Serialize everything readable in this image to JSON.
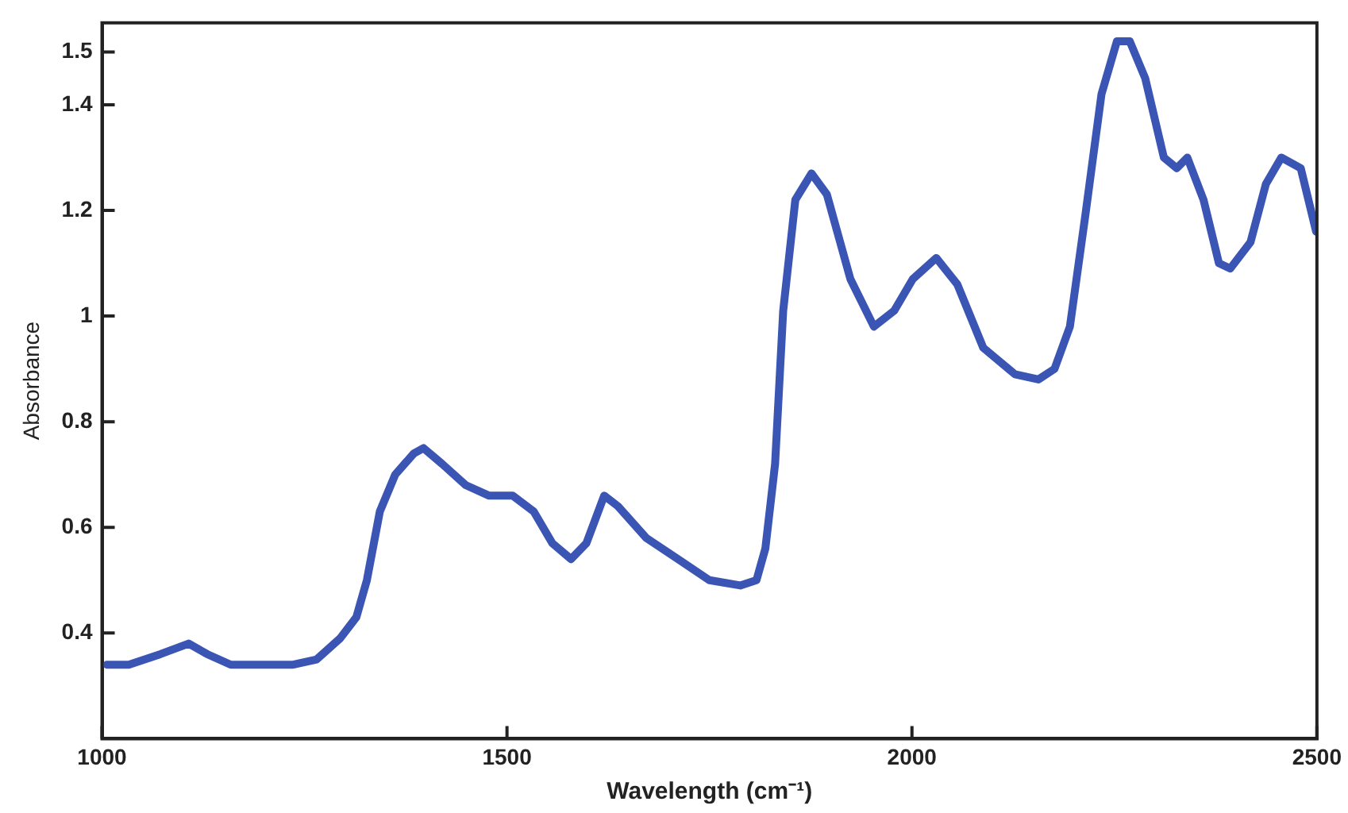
{
  "chart_data": {
    "type": "line",
    "xlabel": "Wavelength (cm⁻¹)",
    "ylabel": "Absorbance",
    "x": [
      1006,
      1033,
      1072,
      1107,
      1130,
      1159,
      1207,
      1236,
      1265,
      1294,
      1314,
      1327,
      1343,
      1362,
      1385,
      1397,
      1420,
      1449,
      1478,
      1507,
      1533,
      1556,
      1579,
      1598,
      1620,
      1637,
      1672,
      1711,
      1750,
      1788,
      1808,
      1819,
      1831,
      1841,
      1856,
      1876,
      1895,
      1924,
      1953,
      1978,
      2001,
      2030,
      2056,
      2088,
      2127,
      2156,
      2176,
      2195,
      2214,
      2234,
      2253,
      2269,
      2288,
      2311,
      2327,
      2340,
      2360,
      2379,
      2393,
      2418,
      2437,
      2456,
      2480,
      2499
    ],
    "series": [
      {
        "color": "#3a55b4",
        "values": [
          0.34,
          0.34,
          0.36,
          0.38,
          0.36,
          0.34,
          0.34,
          0.34,
          0.35,
          0.39,
          0.43,
          0.5,
          0.63,
          0.7,
          0.74,
          0.75,
          0.72,
          0.68,
          0.66,
          0.66,
          0.63,
          0.57,
          0.54,
          0.57,
          0.66,
          0.64,
          0.58,
          0.54,
          0.5,
          0.49,
          0.5,
          0.56,
          0.72,
          1.01,
          1.22,
          1.27,
          1.23,
          1.07,
          0.98,
          1.01,
          1.07,
          1.11,
          1.06,
          0.94,
          0.89,
          0.88,
          0.9,
          0.98,
          1.19,
          1.42,
          1.52,
          1.52,
          1.45,
          1.3,
          1.28,
          1.3,
          1.22,
          1.1,
          1.09,
          1.14,
          1.25,
          1.3,
          1.28,
          1.16
        ]
      }
    ],
    "xlim": [
      1000,
      2500
    ],
    "xticks": [
      1000,
      1500,
      2000,
      2500
    ],
    "ylim": [
      0.2,
      1.555
    ],
    "yticks": [
      0.4,
      0.6,
      0.8,
      1,
      1.2,
      1.4,
      1.5
    ],
    "grid": false,
    "legend": false,
    "marker": "none",
    "line_style": "solid"
  }
}
